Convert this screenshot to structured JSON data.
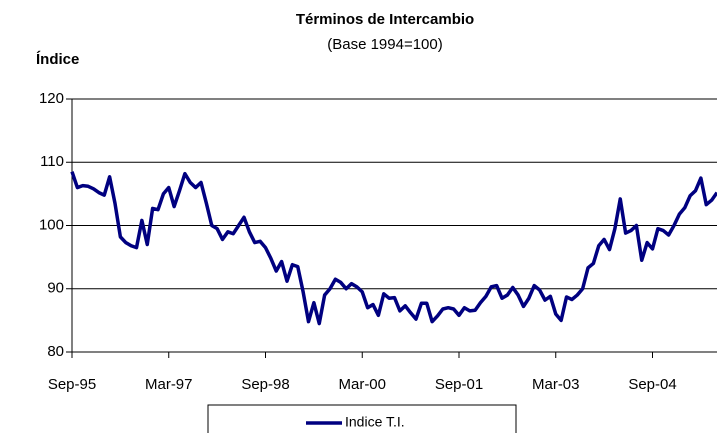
{
  "chart_data": {
    "type": "line",
    "title": "Términos de Intercambio",
    "subtitle": "(Base 1994=100)",
    "y_label": "Índice",
    "categories": [
      "Sep-95",
      null,
      null,
      null,
      null,
      null,
      null,
      null,
      null,
      null,
      null,
      null,
      null,
      null,
      null,
      null,
      null,
      null,
      "Mar-97",
      null,
      null,
      null,
      null,
      null,
      null,
      null,
      null,
      null,
      null,
      null,
      null,
      null,
      null,
      null,
      null,
      null,
      "Sep-98",
      null,
      null,
      null,
      null,
      null,
      null,
      null,
      null,
      null,
      null,
      null,
      null,
      null,
      null,
      null,
      null,
      null,
      "Mar-00",
      null,
      null,
      null,
      null,
      null,
      null,
      null,
      null,
      null,
      null,
      null,
      null,
      null,
      null,
      null,
      null,
      null,
      "Sep-01",
      null,
      null,
      null,
      null,
      null,
      null,
      null,
      null,
      null,
      null,
      null,
      null,
      null,
      null,
      null,
      null,
      null,
      "Mar-03",
      null,
      null,
      null,
      null,
      null,
      null,
      null,
      null,
      null,
      null,
      null,
      null,
      null,
      null,
      null,
      null,
      null,
      "Sep-04",
      null,
      null,
      null,
      null,
      null,
      null,
      null,
      null,
      null,
      null,
      null,
      null
    ],
    "series": [
      {
        "name": "Indice T.I.",
        "color": "#000080",
        "values": [
          108.5,
          106,
          106.3,
          106.2,
          105.8,
          105.2,
          104.8,
          107.7,
          103.5,
          98.2,
          97.3,
          96.8,
          96.5,
          100.8,
          97,
          102.7,
          102.5,
          105,
          106,
          103,
          105.5,
          108.2,
          106.8,
          106,
          106.8,
          103.5,
          100,
          99.5,
          97.8,
          99,
          98.7,
          100,
          101.3,
          99,
          97.3,
          97.5,
          96.5,
          94.8,
          92.8,
          94.3,
          91.2,
          93.8,
          93.5,
          89.5,
          84.8,
          87.8,
          84.5,
          89,
          90,
          91.5,
          91,
          90,
          90.8,
          90.3,
          89.5,
          87,
          87.5,
          85.8,
          89.2,
          88.5,
          88.6,
          86.5,
          87.3,
          86.2,
          85.2,
          87.7,
          87.7,
          84.8,
          85.7,
          86.8,
          87,
          86.8,
          85.8,
          87,
          86.5,
          86.6,
          87.8,
          88.8,
          90.3,
          90.5,
          88.5,
          89,
          90.2,
          89,
          87.2,
          88.5,
          90.5,
          89.8,
          88.2,
          88.8,
          86,
          85,
          88.7,
          88.3,
          89,
          90,
          93.3,
          94,
          96.8,
          97.8,
          96.2,
          99.5,
          104.2,
          98.8,
          99.2,
          100,
          94.5,
          97.3,
          96.3,
          99.5,
          99.2,
          98.5,
          100,
          101.8,
          102.8,
          104.7,
          105.5,
          107.5,
          103.3,
          104,
          105.2
        ]
      }
    ],
    "ylim": [
      80,
      120
    ],
    "yticks": [
      80,
      90,
      100,
      110,
      120
    ],
    "grid": true
  }
}
